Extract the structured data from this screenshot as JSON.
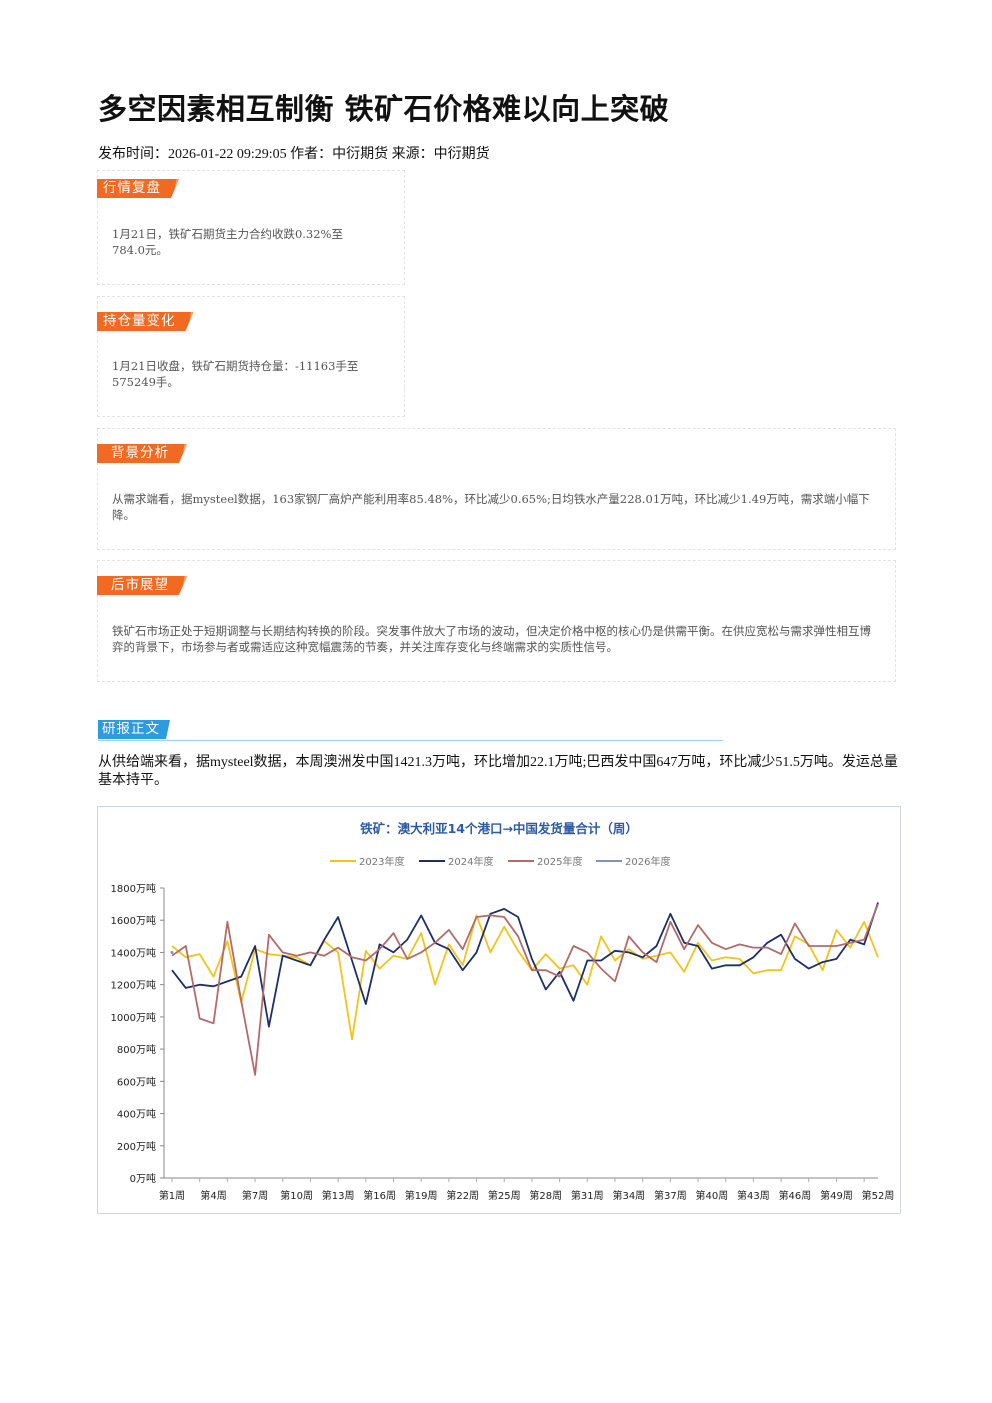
{
  "article": {
    "title": "多空因素相互制衡 铁矿石价格难以向上突破",
    "meta": "发布时间：2026-01-22 09:29:05 作者：中衍期货 来源：中衍期货"
  },
  "cards": [
    {
      "tag": "行情复盘",
      "text": "1月21日，铁矿石期货主力合约收跌0.32%至784.0元。"
    },
    {
      "tag": "持仓量变化",
      "text": "1月21日收盘，铁矿石期货持仓量：-11163手至575249手。"
    },
    {
      "tag": "背景分析",
      "text": "从需求端看，据mysteel数据，163家钢厂高炉产能利用率85.48%，环比减少0.65%;日均铁水产量228.01万吨，环比减少1.49万吨，需求端小幅下降。"
    },
    {
      "tag": "后市展望",
      "text": "铁矿石市场正处于短期调整与长期结构转换的阶段。突发事件放大了市场的波动，但决定价格中枢的核心仍是供需平衡。在供应宽松与需求弹性相互博弈的背景下，市场参与者或需适应这种宽幅震荡的节奏，并关注库存变化与终端需求的实质性信号。"
    }
  ],
  "report": {
    "tag": "研报正文",
    "text": "从供给端来看，据mysteel数据，本周澳洲发中国1421.3万吨，环比增加22.1万吨;巴西发中国647万吨，环比减少51.5万吨。发运总量基本持平。"
  },
  "chart_data": {
    "type": "line",
    "title": "铁矿：澳大利亚14个港口→中国发货量合计（周）",
    "xlabel": "",
    "ylabel": "",
    "ylim": [
      0,
      1800
    ],
    "yticks": [
      "0万吨",
      "200万吨",
      "400万吨",
      "600万吨",
      "800万吨",
      "1000万吨",
      "1200万吨",
      "1400万吨",
      "1600万吨",
      "1800万吨"
    ],
    "xticks": [
      "第1周",
      "第4周",
      "第7周",
      "第10周",
      "第13周",
      "第16周",
      "第19周",
      "第22周",
      "第25周",
      "第28周",
      "第31周",
      "第34周",
      "第37周",
      "第40周",
      "第43周",
      "第46周",
      "第49周",
      "第52周"
    ],
    "grid": false,
    "legend": "top-center",
    "series": [
      {
        "name": "2023年度",
        "color": "#f2c418",
        "values": [
          1440,
          1370,
          1390,
          1250,
          1470,
          1090,
          1420,
          1390,
          1380,
          1370,
          1320,
          1470,
          1400,
          860,
          1410,
          1300,
          1380,
          1360,
          1520,
          1200,
          1450,
          1320,
          1630,
          1400,
          1560,
          1410,
          1290,
          1390,
          1300,
          1320,
          1200,
          1500,
          1350,
          1420,
          1360,
          1380,
          1400,
          1280,
          1460,
          1350,
          1370,
          1360,
          1270,
          1290,
          1290,
          1500,
          1450,
          1290,
          1540,
          1430,
          1590,
          1370
        ]
      },
      {
        "name": "2024年度",
        "color": "#1c2f6b",
        "values": [
          1290,
          1180,
          1200,
          1190,
          1220,
          1250,
          1440,
          940,
          1380,
          1350,
          1320,
          1480,
          1620,
          1350,
          1080,
          1450,
          1400,
          1480,
          1630,
          1460,
          1420,
          1290,
          1400,
          1640,
          1670,
          1620,
          1360,
          1170,
          1280,
          1100,
          1350,
          1350,
          1410,
          1400,
          1370,
          1440,
          1640,
          1460,
          1440,
          1300,
          1320,
          1320,
          1370,
          1460,
          1510,
          1360,
          1300,
          1340,
          1360,
          1480,
          1450,
          1710
        ]
      },
      {
        "name": "2025年度",
        "color": "#b56a6a",
        "values": [
          1380,
          1440,
          990,
          960,
          1590,
          1100,
          640,
          1510,
          1400,
          1380,
          1400,
          1380,
          1430,
          1370,
          1350,
          1420,
          1520,
          1360,
          1400,
          1460,
          1540,
          1420,
          1620,
          1630,
          1620,
          1500,
          1290,
          1290,
          1250,
          1440,
          1400,
          1300,
          1220,
          1500,
          1400,
          1340,
          1590,
          1420,
          1570,
          1460,
          1420,
          1450,
          1430,
          1430,
          1390,
          1580,
          1440,
          1440,
          1440,
          1460,
          1480,
          1700
        ]
      },
      {
        "name": "2026年度",
        "color": "#7f95b8",
        "values": [
          1400
        ]
      }
    ]
  }
}
